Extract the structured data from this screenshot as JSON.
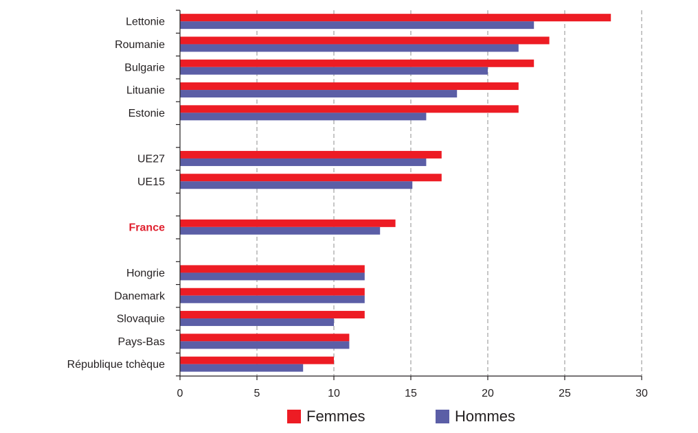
{
  "chart_data": {
    "type": "bar",
    "orientation": "horizontal",
    "categories": [
      "Lettonie",
      "Roumanie",
      "Bulgarie",
      "Lituanie",
      "Estonie",
      "",
      "UE27",
      "UE15",
      "",
      "France",
      "",
      "Hongrie",
      "Danemark",
      "Slovaquie",
      "Pays-Bas",
      "République tchèque"
    ],
    "highlight_category": "France",
    "series": [
      {
        "name": "Femmes",
        "color": "#ed1c24",
        "values": [
          28,
          24,
          23,
          22,
          22,
          null,
          17,
          17,
          null,
          14,
          null,
          12,
          12,
          12,
          11,
          10
        ]
      },
      {
        "name": "Hommes",
        "color": "#5b5ea6",
        "values": [
          23,
          22,
          20,
          18,
          16,
          null,
          16,
          15.1,
          null,
          13,
          null,
          12,
          12,
          10,
          11,
          8
        ]
      }
    ],
    "x_ticks": [
      0,
      5,
      10,
      15,
      20,
      25,
      30
    ],
    "xlim": [
      0,
      30
    ],
    "grid": "vertical dashed",
    "legend_position": "bottom"
  }
}
